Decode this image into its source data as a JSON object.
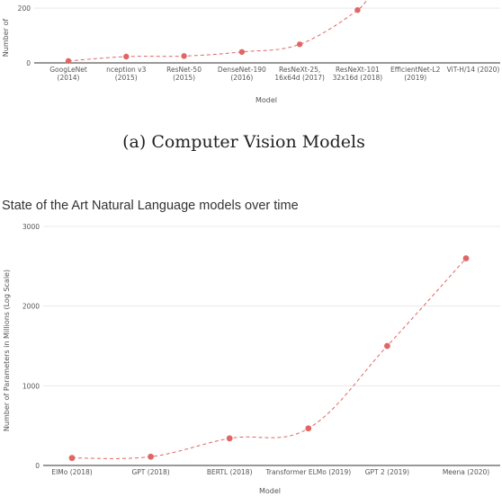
{
  "chart_data": [
    {
      "type": "line",
      "title": "",
      "xlabel": "Model",
      "ylabel": "Number of",
      "caption": "(a) Computer Vision Models",
      "categories": [
        [
          "GoogLeNet",
          "(2014)"
        ],
        [
          "nception v3",
          "(2015)"
        ],
        [
          "ResNet-50",
          "(2015)"
        ],
        [
          "DenseNet-190",
          "(2016)"
        ],
        [
          "ResNeXt-25,",
          "16x64d (2017)"
        ],
        [
          "ResNeXt-101",
          "32x16d (2018)"
        ],
        [
          "EfficientNet-L2",
          "(2019)"
        ],
        [
          "ViT-H/14 (2020)"
        ]
      ],
      "values": [
        7,
        23,
        25,
        40,
        68,
        193,
        null,
        null
      ],
      "yticks": [
        0,
        200
      ],
      "ylim": [
        0,
        210
      ],
      "color": "#e06666",
      "cut_off_top": true
    },
    {
      "type": "line",
      "title": "State of the Art Natural Language models over time",
      "xlabel": "Model",
      "ylabel": "Number of Parameters in Millions (Log Scale)",
      "categories": [
        [
          "EIMo (2018)"
        ],
        [
          "GPT (2018)"
        ],
        [
          "BERTL (2018)"
        ],
        [
          "Transformer ELMo (2019)"
        ],
        [
          "GPT 2 (2019)"
        ],
        [
          "Meena (2020)"
        ]
      ],
      "values": [
        94,
        110,
        340,
        465,
        1500,
        2600
      ],
      "yticks": [
        0,
        1000,
        2000,
        3000
      ],
      "ylim": [
        0,
        3000
      ],
      "color": "#e06666"
    }
  ]
}
